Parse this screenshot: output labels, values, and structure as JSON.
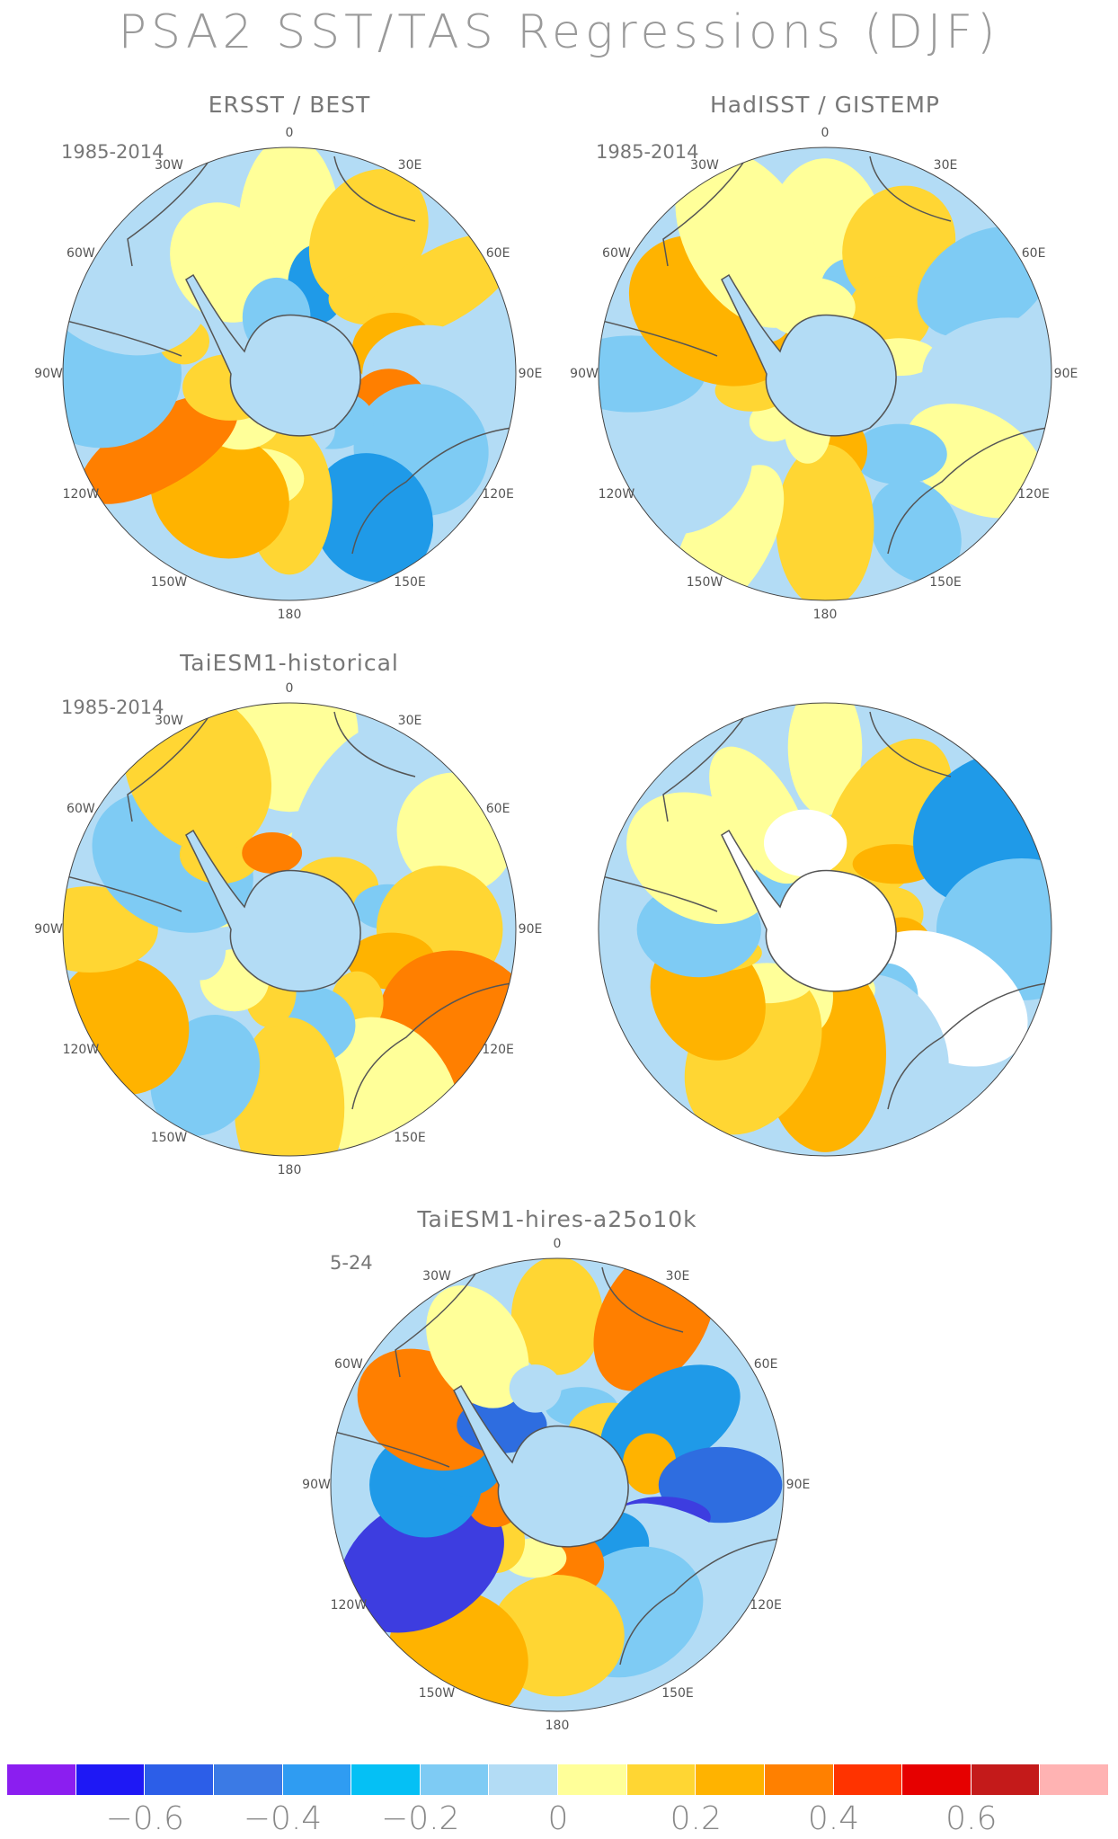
{
  "title": "PSA2 SST/TAS Regressions (DJF)",
  "panels": [
    {
      "title": "ERSST / BEST",
      "period": "1985-2014",
      "lon_labels": [
        "0",
        "30E",
        "60E",
        "90E",
        "120E",
        "150E",
        "180",
        "150W",
        "120W",
        "90W",
        "60W",
        "30W"
      ],
      "palette": [
        "#ffff99",
        "#ffd633",
        "#ffd633",
        "#b3dcf5",
        "#7ecbf4",
        "#1f9ae8",
        "#ffd633",
        "#ffb300",
        "#ff7f00",
        "#7ecbf4",
        "#b3dcf5",
        "#ffff99"
      ]
    },
    {
      "title": "HadISST / GISTEMP",
      "period": "1985-2014",
      "lon_labels": [
        "0",
        "30E",
        "60E",
        "90E",
        "120E",
        "150E",
        "180",
        "150W",
        "120W",
        "90W",
        "60W",
        "30W"
      ],
      "palette": [
        "#ffff99",
        "#ffd633",
        "#7ecbf4",
        "#b3dcf5",
        "#ffff99",
        "#7ecbf4",
        "#ffd633",
        "#ffff99",
        "#b3dcf5",
        "#7ecbf4",
        "#ffb300",
        "#ffff99"
      ]
    },
    {
      "title": "TaiESM1-historical",
      "period": "1985-2014",
      "lon_labels": [
        "0",
        "30E",
        "60E",
        "90E",
        "120E",
        "150E",
        "180",
        "150W",
        "120W",
        "90W",
        "60W",
        "30W"
      ],
      "palette": [
        "#ffff99",
        "#b3dcf5",
        "#ffff99",
        "#ffd633",
        "#ff7f00",
        "#ffff99",
        "#ffd633",
        "#7ecbf4",
        "#ffb300",
        "#ffd633",
        "#7ecbf4",
        "#ffd633"
      ]
    },
    {
      "title": "",
      "period": "",
      "lon_labels": [],
      "palette": [
        "#ffff99",
        "#ffd633",
        "#1f9ae8",
        "#7ecbf4",
        "#ffffff",
        "#b3dcf5",
        "#ffb300",
        "#ffd633",
        "#ffb300",
        "#7ecbf4",
        "#ffff99",
        "#ffff99"
      ]
    },
    {
      "title": "TaiESM1-hires-a25o10k",
      "period": "5-24",
      "lon_labels": [
        "0",
        "30E",
        "60E",
        "90E",
        "120E",
        "150E",
        "180",
        "150W",
        "120W",
        "90W",
        "60W",
        "30W"
      ],
      "palette": [
        "#ffd633",
        "#ff7f00",
        "#1f9ae8",
        "#2e6de0",
        "#b3dcf5",
        "#7ecbf4",
        "#ffd633",
        "#ffb300",
        "#3d3de0",
        "#1f9ae8",
        "#ff7f00",
        "#ffff99"
      ]
    }
  ],
  "colorbar": {
    "colors": [
      "#8b1ef0",
      "#1e18f5",
      "#2c5ee8",
      "#3b7ae5",
      "#2f9cf2",
      "#05c0f5",
      "#7ecbf4",
      "#b3dcf5",
      "#ffff99",
      "#ffd633",
      "#ffb300",
      "#ff8000",
      "#ff3300",
      "#e60000",
      "#c41a1a",
      "#ffb3b3"
    ],
    "labels": [
      "-0.6",
      "-0.4",
      "-0.2",
      "0",
      "0.2",
      "0.4",
      "0.6"
    ],
    "label_values": [
      -0.6,
      -0.4,
      -0.2,
      0,
      0.2,
      0.4,
      0.6
    ],
    "range": [
      -0.8,
      0.8
    ]
  }
}
